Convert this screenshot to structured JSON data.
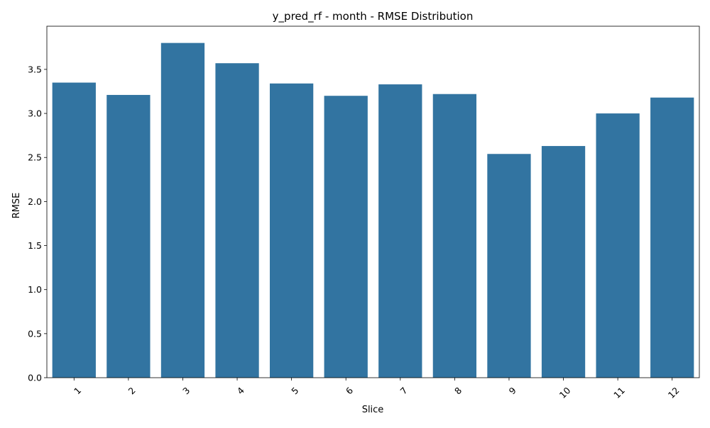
{
  "colors": {
    "bar": "#3274a1",
    "axis": "#000000",
    "background": "#ffffff"
  },
  "chart_data": {
    "type": "bar",
    "title": "y_pred_rf - month - RMSE Distribution",
    "xlabel": "Slice",
    "ylabel": "RMSE",
    "categories": [
      "1",
      "2",
      "3",
      "4",
      "5",
      "6",
      "7",
      "8",
      "9",
      "10",
      "11",
      "12"
    ],
    "values": [
      3.35,
      3.21,
      3.8,
      3.57,
      3.34,
      3.2,
      3.33,
      3.22,
      2.54,
      2.63,
      3.0,
      3.18
    ],
    "ylim": [
      0,
      3.99
    ],
    "yticks": [
      "0.0",
      "0.5",
      "1.0",
      "1.5",
      "2.0",
      "2.5",
      "3.0",
      "3.5"
    ],
    "grid": false,
    "legend": "none"
  }
}
